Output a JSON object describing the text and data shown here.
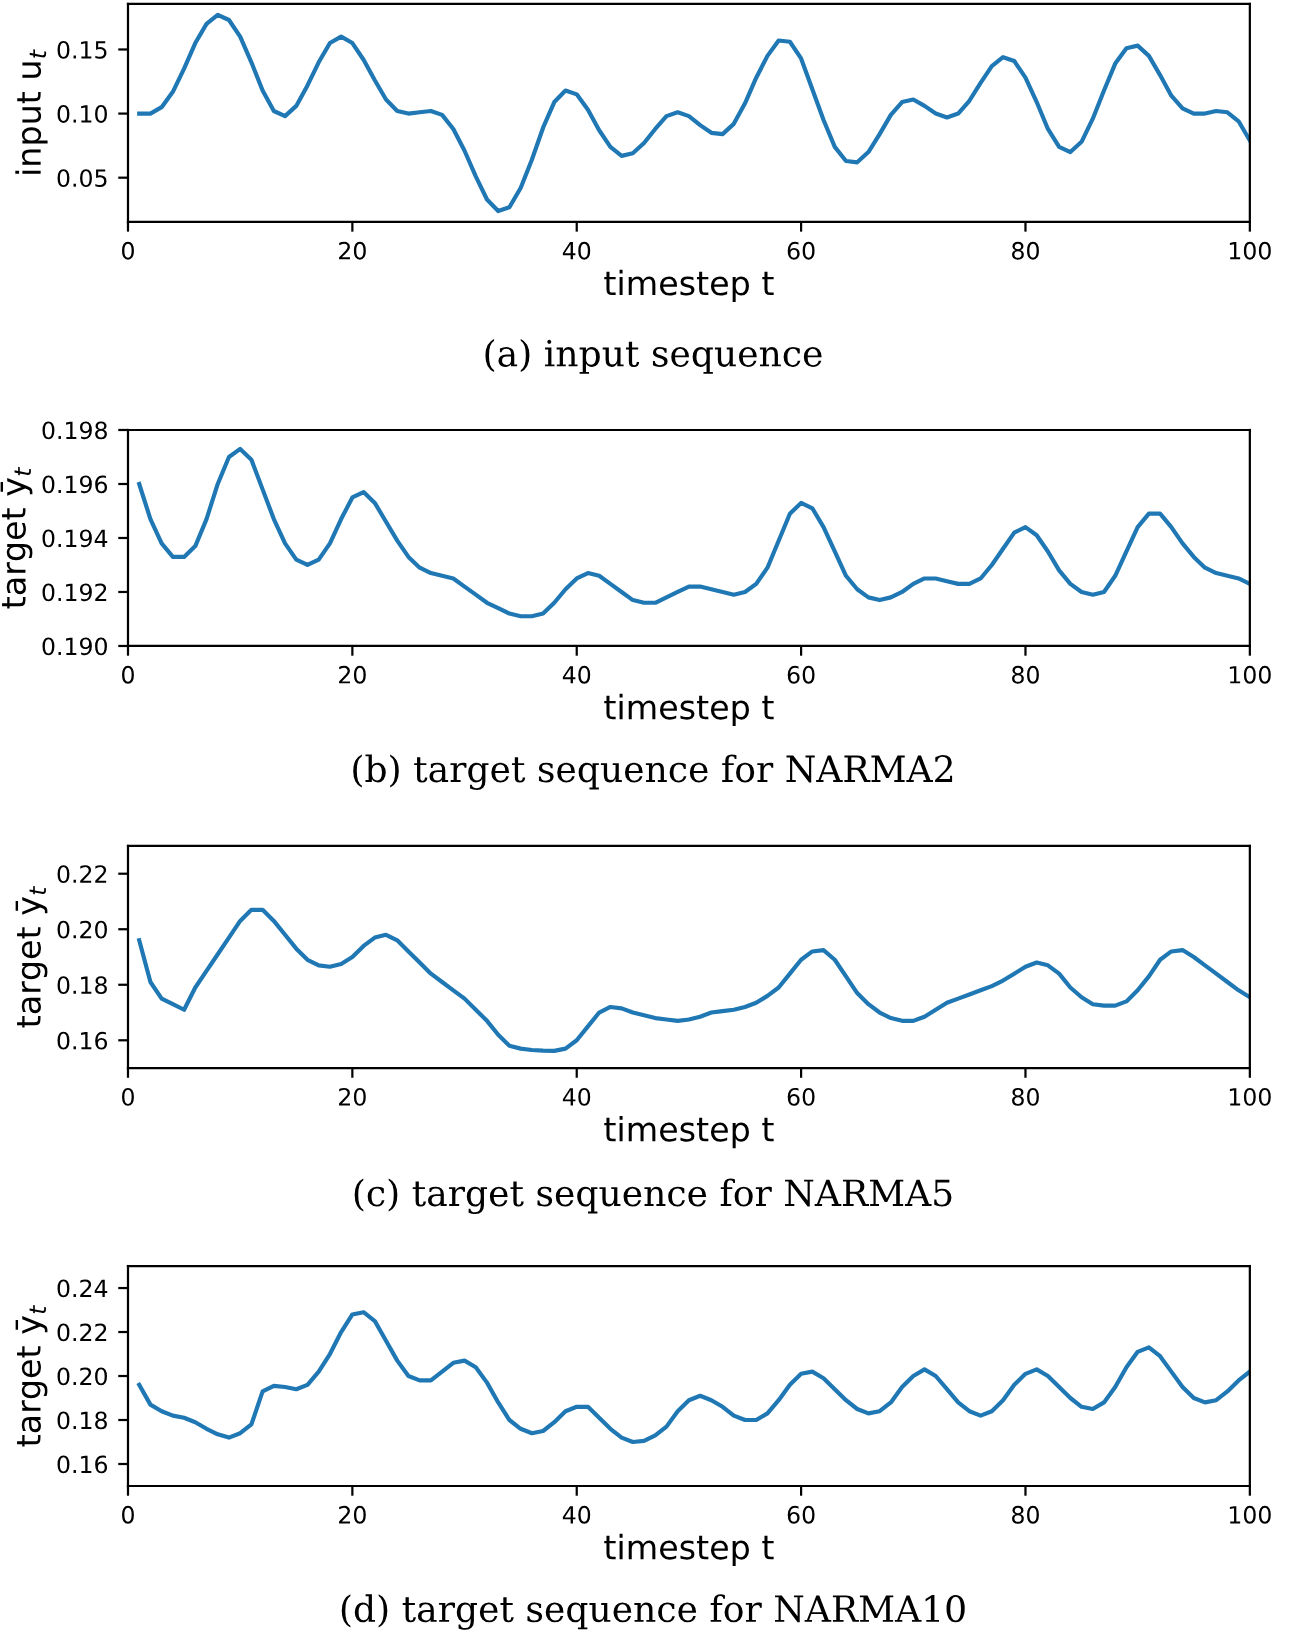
{
  "chart_data": [
    {
      "type": "line",
      "xlabel": "timestep t",
      "ylabel": "input u$_{t}$",
      "annotations": [
        "(a) input sequence"
      ],
      "xlim": [
        0,
        100
      ],
      "xticks": [
        0,
        20,
        40,
        60,
        80,
        100
      ],
      "ylim": [
        0.0155,
        0.1855
      ],
      "yticks": [
        {
          "value": 0.05,
          "label": "0.05"
        },
        {
          "value": 0.1,
          "label": "0.10"
        },
        {
          "value": 0.15,
          "label": "0.15"
        }
      ],
      "series": [
        {
          "color": "#1f77b4",
          "x": [
            1,
            2,
            3,
            4,
            5,
            6,
            7,
            8,
            9,
            10,
            11,
            12,
            13,
            14,
            15,
            16,
            17,
            18,
            19,
            20,
            21,
            22,
            23,
            24,
            25,
            26,
            27,
            28,
            29,
            30,
            31,
            32,
            33,
            34,
            35,
            36,
            37,
            38,
            39,
            40,
            41,
            42,
            43,
            44,
            45,
            46,
            47,
            48,
            49,
            50,
            51,
            52,
            53,
            54,
            55,
            56,
            57,
            58,
            59,
            60,
            61,
            62,
            63,
            64,
            65,
            66,
            67,
            68,
            69,
            70,
            71,
            72,
            73,
            74,
            75,
            76,
            77,
            78,
            79,
            80,
            81,
            82,
            83,
            84,
            85,
            86,
            87,
            88,
            89,
            90,
            91,
            92,
            93,
            94,
            95,
            96,
            97,
            98,
            99,
            100
          ],
          "values": [
            0.1,
            0.1,
            0.105,
            0.117,
            0.135,
            0.155,
            0.17,
            0.177,
            0.173,
            0.16,
            0.14,
            0.118,
            0.102,
            0.098,
            0.106,
            0.122,
            0.14,
            0.155,
            0.16,
            0.155,
            0.142,
            0.126,
            0.111,
            0.102,
            0.1,
            0.101,
            0.102,
            0.099,
            0.088,
            0.071,
            0.051,
            0.033,
            0.024,
            0.027,
            0.042,
            0.064,
            0.089,
            0.109,
            0.118,
            0.115,
            0.103,
            0.087,
            0.074,
            0.067,
            0.069,
            0.077,
            0.088,
            0.098,
            0.101,
            0.098,
            0.091,
            0.085,
            0.084,
            0.092,
            0.108,
            0.128,
            0.145,
            0.157,
            0.156,
            0.143,
            0.119,
            0.095,
            0.074,
            0.063,
            0.062,
            0.07,
            0.084,
            0.099,
            0.109,
            0.111,
            0.106,
            0.1,
            0.097,
            0.1,
            0.11,
            0.124,
            0.137,
            0.144,
            0.141,
            0.128,
            0.109,
            0.088,
            0.074,
            0.07,
            0.078,
            0.096,
            0.118,
            0.139,
            0.151,
            0.153,
            0.145,
            0.13,
            0.114,
            0.104,
            0.1,
            0.1,
            0.102,
            0.101,
            0.094,
            0.079
          ]
        }
      ]
    },
    {
      "type": "line",
      "xlabel": "timestep t",
      "ylabel": "target ȳ$_{t}$",
      "annotations": [
        "(b) target sequence for NARMA2"
      ],
      "xlim": [
        0,
        100
      ],
      "xticks": [
        0,
        20,
        40,
        60,
        80,
        100
      ],
      "ylim": [
        0.19,
        0.198
      ],
      "yticks": [
        {
          "value": 0.19,
          "label": "0.190"
        },
        {
          "value": 0.192,
          "label": "0.192"
        },
        {
          "value": 0.194,
          "label": "0.194"
        },
        {
          "value": 0.196,
          "label": "0.196"
        },
        {
          "value": 0.198,
          "label": "0.198"
        }
      ],
      "series": [
        {
          "color": "#1f77b4",
          "x": [
            1,
            2,
            3,
            4,
            5,
            6,
            7,
            8,
            9,
            10,
            11,
            12,
            13,
            14,
            15,
            16,
            17,
            18,
            19,
            20,
            21,
            22,
            23,
            24,
            25,
            26,
            27,
            28,
            29,
            30,
            31,
            32,
            33,
            34,
            35,
            36,
            37,
            38,
            39,
            40,
            41,
            42,
            43,
            44,
            45,
            46,
            47,
            48,
            49,
            50,
            51,
            52,
            53,
            54,
            55,
            56,
            57,
            58,
            59,
            60,
            61,
            62,
            63,
            64,
            65,
            66,
            67,
            68,
            69,
            70,
            71,
            72,
            73,
            74,
            75,
            76,
            77,
            78,
            79,
            80,
            81,
            82,
            83,
            84,
            85,
            86,
            87,
            88,
            89,
            90,
            91,
            92,
            93,
            94,
            95,
            96,
            97,
            98,
            99,
            100
          ],
          "values": [
            0.196,
            0.1947,
            0.1938,
            0.1933,
            0.1933,
            0.1937,
            0.1947,
            0.196,
            0.197,
            0.1973,
            0.1969,
            0.1958,
            0.1947,
            0.1938,
            0.1932,
            0.193,
            0.1932,
            0.1938,
            0.1947,
            0.1955,
            0.1957,
            0.1953,
            0.1946,
            0.1939,
            0.1933,
            0.1929,
            0.1927,
            0.1926,
            0.1925,
            0.1922,
            0.1919,
            0.1916,
            0.1914,
            0.1912,
            0.1911,
            0.1911,
            0.1912,
            0.1916,
            0.1921,
            0.1925,
            0.1927,
            0.1926,
            0.1923,
            0.192,
            0.1917,
            0.1916,
            0.1916,
            0.1918,
            0.192,
            0.1922,
            0.1922,
            0.1921,
            0.192,
            0.1919,
            0.192,
            0.1923,
            0.1929,
            0.1939,
            0.1949,
            0.1953,
            0.1951,
            0.1944,
            0.1935,
            0.1926,
            0.1921,
            0.1918,
            0.1917,
            0.1918,
            0.192,
            0.1923,
            0.1925,
            0.1925,
            0.1924,
            0.1923,
            0.1923,
            0.1925,
            0.193,
            0.1936,
            0.1942,
            0.1944,
            0.1941,
            0.1935,
            0.1928,
            0.1923,
            0.192,
            0.1919,
            0.192,
            0.1926,
            0.1935,
            0.1944,
            0.1949,
            0.1949,
            0.1944,
            0.1938,
            0.1933,
            0.1929,
            0.1927,
            0.1926,
            0.1925,
            0.1923
          ]
        }
      ]
    },
    {
      "type": "line",
      "xlabel": "timestep t",
      "ylabel": "target ȳ$_{t}$",
      "annotations": [
        "(c) target sequence for NARMA5"
      ],
      "xlim": [
        0,
        100
      ],
      "xticks": [
        0,
        20,
        40,
        60,
        80,
        100
      ],
      "ylim": [
        0.15,
        0.23
      ],
      "yticks": [
        {
          "value": 0.16,
          "label": "0.16"
        },
        {
          "value": 0.18,
          "label": "0.18"
        },
        {
          "value": 0.2,
          "label": "0.20"
        },
        {
          "value": 0.22,
          "label": "0.22"
        }
      ],
      "series": [
        {
          "color": "#1f77b4",
          "x": [
            1,
            2,
            3,
            4,
            5,
            6,
            7,
            8,
            9,
            10,
            11,
            12,
            13,
            14,
            15,
            16,
            17,
            18,
            19,
            20,
            21,
            22,
            23,
            24,
            25,
            26,
            27,
            28,
            29,
            30,
            31,
            32,
            33,
            34,
            35,
            36,
            37,
            38,
            39,
            40,
            41,
            42,
            43,
            44,
            45,
            46,
            47,
            48,
            49,
            50,
            51,
            52,
            53,
            54,
            55,
            56,
            57,
            58,
            59,
            60,
            61,
            62,
            63,
            64,
            65,
            66,
            67,
            68,
            69,
            70,
            71,
            72,
            73,
            74,
            75,
            76,
            77,
            78,
            79,
            80,
            81,
            82,
            83,
            84,
            85,
            86,
            87,
            88,
            89,
            90,
            91,
            92,
            93,
            94,
            95,
            96,
            97,
            98,
            99,
            100
          ],
          "values": [
            0.196,
            0.181,
            0.175,
            0.173,
            0.171,
            0.179,
            0.185,
            0.191,
            0.197,
            0.203,
            0.207,
            0.207,
            0.203,
            0.198,
            0.193,
            0.189,
            0.187,
            0.1865,
            0.1875,
            0.19,
            0.194,
            0.197,
            0.198,
            0.196,
            0.192,
            0.188,
            0.184,
            0.181,
            0.178,
            0.175,
            0.171,
            0.167,
            0.162,
            0.158,
            0.157,
            0.1565,
            0.1563,
            0.1562,
            0.157,
            0.16,
            0.165,
            0.17,
            0.172,
            0.1715,
            0.17,
            0.169,
            0.168,
            0.1675,
            0.167,
            0.1675,
            0.1685,
            0.17,
            0.1705,
            0.171,
            0.172,
            0.1735,
            0.176,
            0.179,
            0.184,
            0.189,
            0.192,
            0.1925,
            0.189,
            0.183,
            0.177,
            0.173,
            0.17,
            0.168,
            0.167,
            0.167,
            0.1685,
            0.171,
            0.1735,
            0.175,
            0.1765,
            0.178,
            0.1795,
            0.1815,
            0.184,
            0.1865,
            0.188,
            0.187,
            0.184,
            0.179,
            0.1755,
            0.173,
            0.1725,
            0.1725,
            0.174,
            0.178,
            0.183,
            0.189,
            0.192,
            0.1925,
            0.19,
            0.187,
            0.184,
            0.181,
            0.178,
            0.1755
          ]
        }
      ]
    },
    {
      "type": "line",
      "xlabel": "timestep t",
      "ylabel": "target ȳ$_{t}$",
      "annotations": [
        "(d) target sequence for NARMA10"
      ],
      "xlim": [
        0,
        100
      ],
      "xticks": [
        0,
        20,
        40,
        60,
        80,
        100
      ],
      "ylim": [
        0.15,
        0.25
      ],
      "yticks": [
        {
          "value": 0.16,
          "label": "0.16"
        },
        {
          "value": 0.18,
          "label": "0.18"
        },
        {
          "value": 0.2,
          "label": "0.20"
        },
        {
          "value": 0.22,
          "label": "0.22"
        },
        {
          "value": 0.24,
          "label": "0.24"
        }
      ],
      "series": [
        {
          "color": "#1f77b4",
          "x": [
            1,
            2,
            3,
            4,
            5,
            6,
            7,
            8,
            9,
            10,
            11,
            12,
            13,
            14,
            15,
            16,
            17,
            18,
            19,
            20,
            21,
            22,
            23,
            24,
            25,
            26,
            27,
            28,
            29,
            30,
            31,
            32,
            33,
            34,
            35,
            36,
            37,
            38,
            39,
            40,
            41,
            42,
            43,
            44,
            45,
            46,
            47,
            48,
            49,
            50,
            51,
            52,
            53,
            54,
            55,
            56,
            57,
            58,
            59,
            60,
            61,
            62,
            63,
            64,
            65,
            66,
            67,
            68,
            69,
            70,
            71,
            72,
            73,
            74,
            75,
            76,
            77,
            78,
            79,
            80,
            81,
            82,
            83,
            84,
            85,
            86,
            87,
            88,
            89,
            90,
            91,
            92,
            93,
            94,
            95,
            96,
            97,
            98,
            99,
            100
          ],
          "values": [
            0.196,
            0.187,
            0.184,
            0.182,
            0.181,
            0.179,
            0.176,
            0.1735,
            0.172,
            0.174,
            0.178,
            0.193,
            0.1955,
            0.195,
            0.194,
            0.196,
            0.202,
            0.21,
            0.22,
            0.228,
            0.229,
            0.225,
            0.216,
            0.207,
            0.2,
            0.198,
            0.198,
            0.202,
            0.206,
            0.207,
            0.204,
            0.197,
            0.188,
            0.18,
            0.176,
            0.174,
            0.175,
            0.179,
            0.184,
            0.186,
            0.186,
            0.181,
            0.176,
            0.172,
            0.17,
            0.1705,
            0.173,
            0.177,
            0.184,
            0.189,
            0.191,
            0.189,
            0.186,
            0.182,
            0.18,
            0.18,
            0.183,
            0.189,
            0.196,
            0.201,
            0.202,
            0.199,
            0.194,
            0.189,
            0.185,
            0.183,
            0.184,
            0.188,
            0.195,
            0.2,
            0.203,
            0.2,
            0.194,
            0.188,
            0.184,
            0.182,
            0.184,
            0.189,
            0.196,
            0.201,
            0.203,
            0.2,
            0.195,
            0.19,
            0.186,
            0.185,
            0.188,
            0.195,
            0.204,
            0.211,
            0.213,
            0.209,
            0.202,
            0.195,
            0.19,
            0.188,
            0.189,
            0.193,
            0.198,
            0.202
          ]
        }
      ]
    }
  ]
}
